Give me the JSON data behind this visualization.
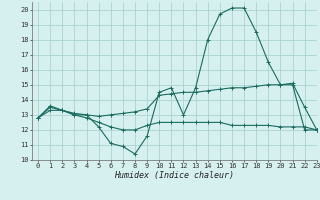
{
  "xlabel": "Humidex (Indice chaleur)",
  "xlim": [
    -0.5,
    23
  ],
  "ylim": [
    10,
    20.5
  ],
  "xticks": [
    0,
    1,
    2,
    3,
    4,
    5,
    6,
    7,
    8,
    9,
    10,
    11,
    12,
    13,
    14,
    15,
    16,
    17,
    18,
    19,
    20,
    21,
    22,
    23
  ],
  "yticks": [
    10,
    11,
    12,
    13,
    14,
    15,
    16,
    17,
    18,
    19,
    20
  ],
  "background_color": "#d6f0f0",
  "grid_color": "#aad4d0",
  "line_color": "#1a6b5e",
  "line1_y": [
    12.8,
    13.6,
    13.3,
    13.0,
    13.0,
    12.2,
    11.1,
    10.9,
    10.4,
    11.6,
    14.5,
    14.8,
    13.0,
    14.8,
    18.0,
    19.7,
    20.1,
    20.1,
    18.5,
    16.5,
    15.0,
    15.1,
    13.5,
    12.0
  ],
  "line2_y": [
    12.8,
    13.5,
    13.3,
    13.1,
    13.0,
    12.9,
    13.0,
    13.1,
    13.2,
    13.4,
    14.3,
    14.4,
    14.5,
    14.5,
    14.6,
    14.7,
    14.8,
    14.8,
    14.9,
    15.0,
    15.0,
    15.0,
    12.0,
    12.0
  ],
  "line3_y": [
    12.8,
    13.3,
    13.3,
    13.0,
    12.8,
    12.5,
    12.2,
    12.0,
    12.0,
    12.3,
    12.5,
    12.5,
    12.5,
    12.5,
    12.5,
    12.5,
    12.3,
    12.3,
    12.3,
    12.3,
    12.2,
    12.2,
    12.2,
    12.0
  ],
  "xlabel_fontsize": 6,
  "tick_fontsize": 5,
  "marker_size": 2.5,
  "line_width": 0.8
}
